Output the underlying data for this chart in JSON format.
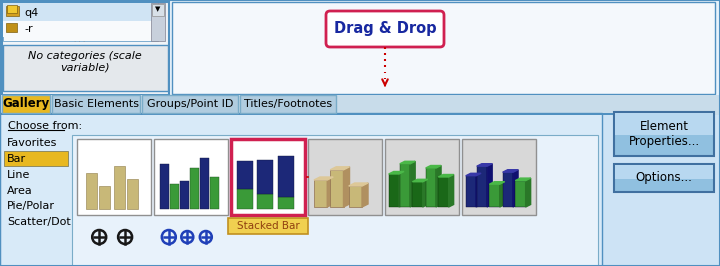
{
  "bg_light_blue": "#cde3f5",
  "bg_panel_top": "#e8f3fb",
  "bg_white": "#ffffff",
  "bg_gray_panel": "#e0e0e0",
  "bg_gallery": "#d8eaf8",
  "bg_gallery_inner": "#e8f2fb",
  "tab_gold": "#e8b820",
  "tab_blue_light": "#b0ccdf",
  "tab_selected_bg": "#d0e8f8",
  "border_blue": "#5090c0",
  "border_mid": "#7aacc8",
  "text_dark": "#000000",
  "text_italic": "#111111",
  "drag_drop_text": "Drag & Drop",
  "drag_drop_border": "#d02050",
  "arrow_color": "#cc0000",
  "no_categories_text": "No categories (scale\nvariable)",
  "choose_from_text": "Choose from:",
  "gallery_tab": "Gallery",
  "basic_elements_tab": "Basic Elements",
  "groups_tab": "Groups/Point ID",
  "titles_tab": "Titles/Footnotes",
  "left_menu_items": [
    "Favorites",
    "Bar",
    "Line",
    "Area",
    "Pie/Polar",
    "Scatter/Dot"
  ],
  "selected_menu": "Bar",
  "element_props_btn": "Element\nProperties...",
  "options_btn": "Options...",
  "stacked_bar_label": "Stacked Bar",
  "bar_colors_tan": "#c8b878",
  "bar_colors_green": "#3a9a38",
  "bar_colors_navy": "#1c2878",
  "selected_highlight": "#d02050",
  "btn_face": "#90c0e0",
  "btn_highlight": "#b8d8f0",
  "btn_border": "#4070a0"
}
